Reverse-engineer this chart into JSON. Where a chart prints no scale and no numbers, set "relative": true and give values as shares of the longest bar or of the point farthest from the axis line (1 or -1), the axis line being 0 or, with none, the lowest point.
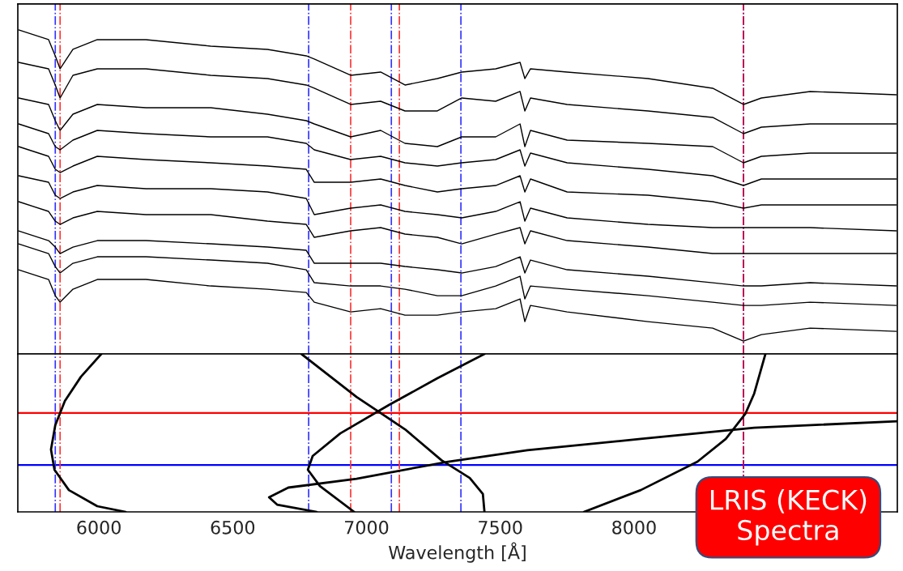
{
  "chart_data": [
    {
      "type": "line",
      "relative": true,
      "xlim": [
        5697,
        8984
      ],
      "tick_labels": false,
      "x": [
        5700,
        5812,
        5837,
        5855,
        5903,
        5994,
        6176,
        6418,
        6630,
        6775,
        6805,
        6941,
        7053,
        7144,
        7265,
        7356,
        7483,
        7574,
        7592,
        7613,
        7750,
        8052,
        8294,
        8409,
        8476,
        8658,
        8980
      ],
      "series": [
        {
          "color": "#000000",
          "values": [
            1.0,
            0.97,
            0.92,
            0.88,
            0.94,
            0.97,
            0.97,
            0.95,
            0.94,
            0.92,
            0.91,
            0.86,
            0.87,
            0.83,
            0.85,
            0.87,
            0.88,
            0.9,
            0.85,
            0.88,
            0.87,
            0.85,
            0.82,
            0.77,
            0.79,
            0.81,
            0.8
          ]
        },
        {
          "color": "#000000",
          "values": [
            0.9,
            0.88,
            0.83,
            0.79,
            0.86,
            0.88,
            0.88,
            0.86,
            0.85,
            0.83,
            0.82,
            0.77,
            0.78,
            0.75,
            0.75,
            0.79,
            0.78,
            0.81,
            0.75,
            0.79,
            0.77,
            0.75,
            0.73,
            0.68,
            0.7,
            0.71,
            0.71
          ]
        },
        {
          "color": "#000000",
          "values": [
            0.79,
            0.77,
            0.72,
            0.69,
            0.74,
            0.77,
            0.76,
            0.76,
            0.74,
            0.72,
            0.71,
            0.67,
            0.69,
            0.65,
            0.64,
            0.67,
            0.67,
            0.71,
            0.64,
            0.69,
            0.66,
            0.65,
            0.64,
            0.59,
            0.61,
            0.62,
            0.62
          ]
        },
        {
          "color": "#000000",
          "values": [
            0.71,
            0.68,
            0.64,
            0.63,
            0.66,
            0.69,
            0.68,
            0.67,
            0.67,
            0.65,
            0.63,
            0.6,
            0.61,
            0.59,
            0.58,
            0.59,
            0.6,
            0.63,
            0.58,
            0.62,
            0.59,
            0.57,
            0.55,
            0.52,
            0.54,
            0.54,
            0.54
          ]
        },
        {
          "color": "#000000",
          "values": [
            0.64,
            0.61,
            0.57,
            0.56,
            0.58,
            0.61,
            0.6,
            0.59,
            0.58,
            0.57,
            0.53,
            0.53,
            0.54,
            0.52,
            0.5,
            0.51,
            0.52,
            0.55,
            0.5,
            0.54,
            0.5,
            0.49,
            0.47,
            0.45,
            0.46,
            0.46,
            0.46
          ]
        },
        {
          "color": "#000000",
          "values": [
            0.55,
            0.53,
            0.49,
            0.48,
            0.5,
            0.52,
            0.51,
            0.51,
            0.5,
            0.48,
            0.43,
            0.45,
            0.46,
            0.44,
            0.43,
            0.42,
            0.44,
            0.47,
            0.41,
            0.45,
            0.42,
            0.4,
            0.39,
            0.39,
            0.39,
            0.39,
            0.38
          ]
        },
        {
          "color": "#000000",
          "values": [
            0.47,
            0.44,
            0.41,
            0.4,
            0.42,
            0.44,
            0.43,
            0.43,
            0.41,
            0.4,
            0.36,
            0.38,
            0.39,
            0.37,
            0.36,
            0.34,
            0.37,
            0.39,
            0.34,
            0.38,
            0.35,
            0.33,
            0.31,
            0.31,
            0.31,
            0.31,
            0.31
          ]
        },
        {
          "color": "#000000",
          "values": [
            0.38,
            0.35,
            0.33,
            0.31,
            0.33,
            0.35,
            0.35,
            0.34,
            0.33,
            0.32,
            0.28,
            0.28,
            0.28,
            0.27,
            0.26,
            0.25,
            0.27,
            0.3,
            0.25,
            0.29,
            0.26,
            0.24,
            0.22,
            0.21,
            0.21,
            0.22,
            0.21
          ]
        },
        {
          "color": "#000000",
          "values": [
            0.34,
            0.31,
            0.27,
            0.25,
            0.28,
            0.3,
            0.3,
            0.29,
            0.28,
            0.26,
            0.22,
            0.21,
            0.21,
            0.2,
            0.18,
            0.18,
            0.21,
            0.24,
            0.17,
            0.21,
            0.2,
            0.18,
            0.16,
            0.15,
            0.15,
            0.16,
            0.15
          ]
        },
        {
          "color": "#000000",
          "values": [
            0.26,
            0.23,
            0.18,
            0.16,
            0.2,
            0.23,
            0.23,
            0.21,
            0.2,
            0.19,
            0.16,
            0.13,
            0.14,
            0.12,
            0.12,
            0.13,
            0.14,
            0.17,
            0.1,
            0.15,
            0.13,
            0.1,
            0.08,
            0.04,
            0.06,
            0.08,
            0.07
          ]
        }
      ],
      "ref_lines": [
        {
          "axis": "x",
          "value": 5837,
          "color": "#3333ff",
          "line_style": "dashdot"
        },
        {
          "axis": "x",
          "value": 5855,
          "color": "#ff3333",
          "line_style": "dashdot"
        },
        {
          "axis": "x",
          "value": 6784,
          "color": "#3333ff",
          "line_style": "dashdot"
        },
        {
          "axis": "x",
          "value": 6941,
          "color": "#ff3333",
          "line_style": "dashdot"
        },
        {
          "axis": "x",
          "value": 7093,
          "color": "#3333ff",
          "line_style": "dashdot"
        },
        {
          "axis": "x",
          "value": 7123,
          "color": "#ff3333",
          "line_style": "dashdot"
        },
        {
          "axis": "x",
          "value": 7353,
          "color": "#3333ff",
          "line_style": "dashdot"
        },
        {
          "axis": "x",
          "value": 8409,
          "color": "#3333ff",
          "line_style": "dashdot"
        },
        {
          "axis": "x",
          "value": 8409,
          "color": "#cc0033",
          "line_style": "dashdot"
        }
      ]
    },
    {
      "type": "line",
      "relative": true,
      "xlim": [
        5697,
        8984
      ],
      "xticks": [
        6000,
        6500,
        7000,
        7500,
        8000
      ],
      "tick_labels": "x",
      "xlabel": "Wavelength [Å]",
      "series": [
        {
          "color": "#000000",
          "x": [
            6009,
            5933,
            5873,
            5837,
            5821,
            5834,
            5888,
            5994,
            6100
          ],
          "values": [
            1.0,
            0.856,
            0.703,
            0.549,
            0.395,
            0.267,
            0.138,
            0.036,
            0.0
          ]
        },
        {
          "color": "#000000",
          "x": [
            6757,
            6963,
            7144,
            7280,
            7386,
            7435,
            7441
          ],
          "values": [
            1.0,
            0.728,
            0.523,
            0.328,
            0.215,
            0.113,
            0.0
          ]
        },
        {
          "color": "#000000",
          "x": [
            7441,
            7265,
            7084,
            6902,
            6799,
            6781,
            6826,
            6954
          ],
          "values": [
            1.0,
            0.846,
            0.677,
            0.497,
            0.354,
            0.267,
            0.164,
            0.0
          ]
        },
        {
          "color": "#000000",
          "x": [
            8984,
            8449,
            8025,
            7601,
            7305,
            6963,
            6708,
            6636,
            6666,
            6814
          ],
          "values": [
            0.574,
            0.533,
            0.462,
            0.39,
            0.318,
            0.21,
            0.154,
            0.092,
            0.046,
            0.0
          ]
        },
        {
          "color": "#000000",
          "x": [
            8491,
            8449,
            8416,
            8343,
            8237,
            8025,
            7813
          ],
          "values": [
            1.0,
            0.749,
            0.621,
            0.462,
            0.318,
            0.138,
            0.0
          ]
        }
      ],
      "ref_lines": [
        {
          "axis": "y",
          "value": 0.626,
          "color": "#ff0000",
          "line_style": "solid"
        },
        {
          "axis": "y",
          "value": 0.297,
          "color": "#0000ff",
          "line_style": "solid"
        },
        {
          "axis": "x",
          "value": 5837,
          "color": "#3333ff",
          "line_style": "dashdot"
        },
        {
          "axis": "x",
          "value": 5855,
          "color": "#ff3333",
          "line_style": "dashdot"
        },
        {
          "axis": "x",
          "value": 6784,
          "color": "#3333ff",
          "line_style": "dashdot"
        },
        {
          "axis": "x",
          "value": 6941,
          "color": "#ff3333",
          "line_style": "dashdot"
        },
        {
          "axis": "x",
          "value": 7093,
          "color": "#3333ff",
          "line_style": "dashdot"
        },
        {
          "axis": "x",
          "value": 7123,
          "color": "#ff3333",
          "line_style": "dashdot"
        },
        {
          "axis": "x",
          "value": 7353,
          "color": "#3333ff",
          "line_style": "dashdot"
        },
        {
          "axis": "x",
          "value": 8409,
          "color": "#3333ff",
          "line_style": "dashdot"
        },
        {
          "axis": "x",
          "value": 8409,
          "color": "#cc0033",
          "line_style": "dashdot"
        }
      ],
      "annotations": [
        "LRIS (KECK)\nSpectra"
      ]
    }
  ]
}
